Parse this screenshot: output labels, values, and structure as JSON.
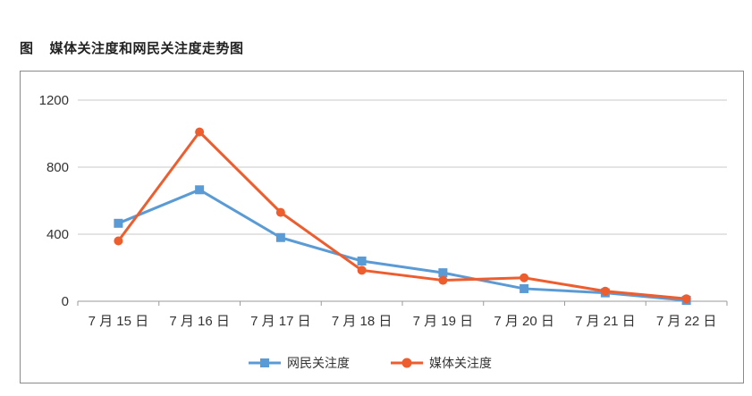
{
  "figure": {
    "prefix": "图",
    "title": "媒体关注度和网民关注度走势图"
  },
  "chart_data": {
    "type": "line",
    "categories": [
      "7 月 15 日",
      "7 月 16 日",
      "7 月 17 日",
      "7 月 18 日",
      "7 月 19 日",
      "7 月 20 日",
      "7 月 21 日",
      "7 月 22 日"
    ],
    "series": [
      {
        "name": "网民关注度",
        "color": "#5b9bd5",
        "marker": "square",
        "values": [
          465,
          665,
          380,
          240,
          170,
          75,
          50,
          5
        ]
      },
      {
        "name": "媒体关注度",
        "color": "#ed5d2e",
        "marker": "circle",
        "values": [
          360,
          1010,
          530,
          185,
          125,
          140,
          60,
          15
        ]
      }
    ],
    "yticks": [
      "0",
      "400",
      "800",
      "1200"
    ],
    "ylim": [
      0,
      1200
    ],
    "grid": true,
    "legend": "bottom-center"
  }
}
